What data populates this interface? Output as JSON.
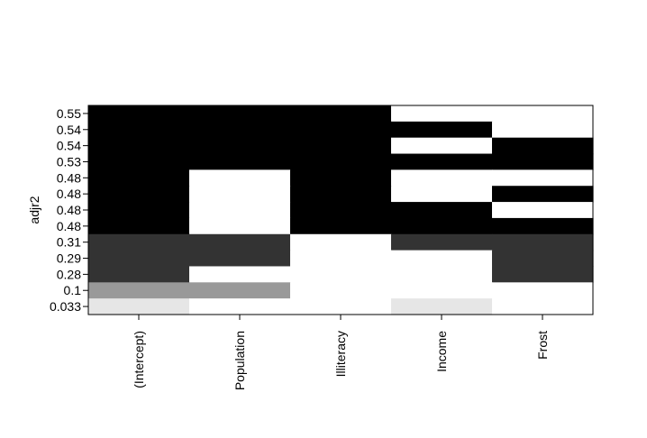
{
  "chart_data": {
    "type": "heatmap",
    "title": "",
    "xlabel": "",
    "ylabel": "adjr2",
    "variables": [
      "(Intercept)",
      "Population",
      "Illiteracy",
      "Income",
      "Frost"
    ],
    "rows": [
      {
        "adjr2": "0.55",
        "cells": [
          0.0,
          0.0,
          0.0,
          1.0,
          1.0
        ]
      },
      {
        "adjr2": "0.54",
        "cells": [
          0.0,
          0.0,
          0.0,
          0.0,
          1.0
        ]
      },
      {
        "adjr2": "0.54",
        "cells": [
          0.0,
          0.0,
          0.0,
          1.0,
          0.0
        ]
      },
      {
        "adjr2": "0.53",
        "cells": [
          0.0,
          0.0,
          0.0,
          0.0,
          0.0
        ]
      },
      {
        "adjr2": "0.48",
        "cells": [
          0.0,
          1.0,
          0.0,
          1.0,
          1.0
        ]
      },
      {
        "adjr2": "0.48",
        "cells": [
          0.0,
          1.0,
          0.0,
          1.0,
          0.0
        ]
      },
      {
        "adjr2": "0.48",
        "cells": [
          0.0,
          1.0,
          0.0,
          0.0,
          1.0
        ]
      },
      {
        "adjr2": "0.48",
        "cells": [
          0.0,
          1.0,
          0.0,
          0.0,
          0.0
        ]
      },
      {
        "adjr2": "0.31",
        "cells": [
          0.2,
          0.2,
          1.0,
          0.2,
          0.2
        ]
      },
      {
        "adjr2": "0.29",
        "cells": [
          0.2,
          0.2,
          1.0,
          1.0,
          0.2
        ]
      },
      {
        "adjr2": "0.28",
        "cells": [
          0.2,
          1.0,
          1.0,
          1.0,
          0.2
        ]
      },
      {
        "adjr2": "0.1",
        "cells": [
          0.6,
          0.6,
          1.0,
          1.0,
          1.0
        ]
      },
      {
        "adjr2": "0.033",
        "cells": [
          0.9,
          1.0,
          1.0,
          0.9,
          1.0
        ]
      }
    ],
    "grid": false,
    "legend": "none"
  }
}
